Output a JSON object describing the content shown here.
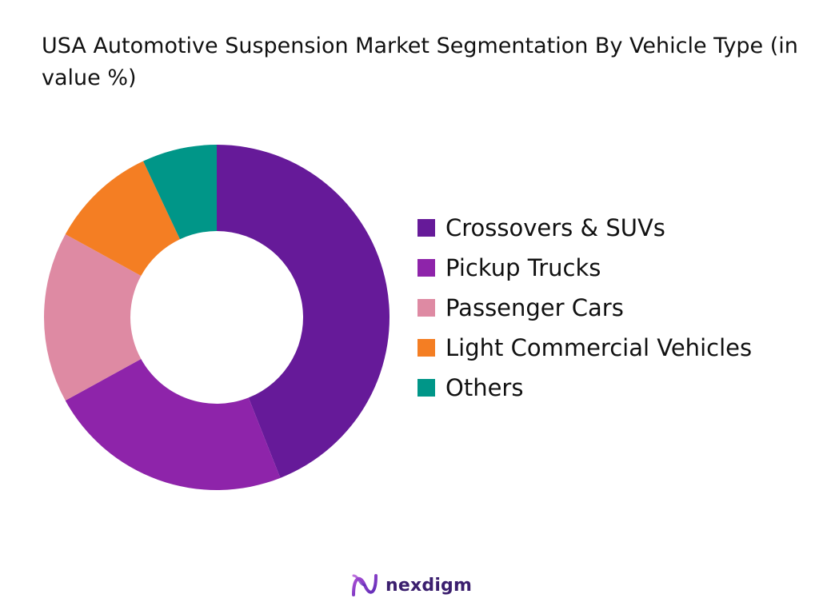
{
  "chart_data": {
    "type": "pie",
    "title": "USA Automotive Suspension Market Segmentation By Vehicle Type (in value %)",
    "categories": [
      "Crossovers & SUVs",
      "Pickup Trucks",
      "Passenger Cars",
      "Light Commercial Vehicles",
      "Others"
    ],
    "values": [
      44,
      23,
      16,
      10,
      7
    ],
    "unit": "%",
    "donut": true,
    "legend_position": "right",
    "colors": [
      "#661a99",
      "#8e24aa",
      "#de8aa3",
      "#f47e23",
      "#009688"
    ]
  },
  "branding": {
    "logo_text": "nexdigm",
    "logo_icon": "nexdigm-wave-icon"
  }
}
